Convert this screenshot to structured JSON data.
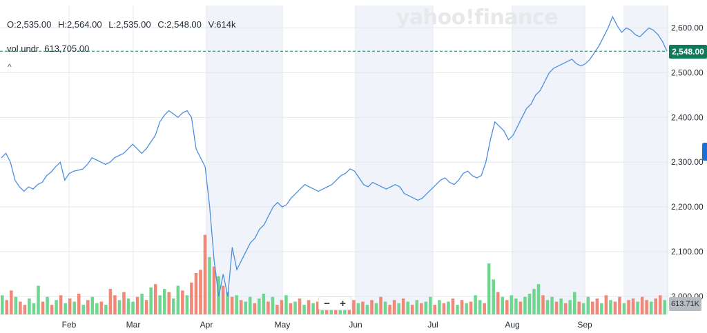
{
  "header": {
    "open": "O:2,535.00",
    "high": "H:2,564.00",
    "low": "L:2,535.00",
    "close": "C:2,548.00",
    "volume": "V:614k",
    "vol_under_label": "vol undr",
    "vol_under_value": "613,705.00",
    "collapse_glyph": "^"
  },
  "watermark": "yahoo!finance",
  "price_badge": "2,548.00",
  "volume_badge": "613.71K",
  "zoom": {
    "minus": "−",
    "plus": "+"
  },
  "colors": {
    "line": "#4a8fe0",
    "up": "#6fd68f",
    "down": "#f08878",
    "badge": "#0f7a5a",
    "shade": "#f0f3f9"
  },
  "chart_data": {
    "type": "line",
    "ylim": [
      1960,
      2650
    ],
    "yticks": [
      {
        "v": 2000,
        "label": "2,000.00"
      },
      {
        "v": 2100,
        "label": "2,100.00"
      },
      {
        "v": 2200,
        "label": "2,200.00"
      },
      {
        "v": 2300,
        "label": "2,300.00"
      },
      {
        "v": 2400,
        "label": "2,400.00"
      },
      {
        "v": 2500,
        "label": "2,500.00"
      },
      {
        "v": 2600,
        "label": "2,600.00"
      }
    ],
    "months": [
      "Feb",
      "Mar",
      "Apr",
      "May",
      "Jun",
      "Jul",
      "Aug",
      "Sep"
    ],
    "last_price": 2548,
    "price": [
      2310,
      2320,
      2300,
      2260,
      2245,
      2235,
      2245,
      2240,
      2250,
      2255,
      2270,
      2278,
      2290,
      2300,
      2260,
      2275,
      2280,
      2282,
      2285,
      2295,
      2310,
      2305,
      2300,
      2295,
      2300,
      2310,
      2315,
      2320,
      2330,
      2340,
      2330,
      2320,
      2330,
      2345,
      2360,
      2390,
      2405,
      2415,
      2408,
      2400,
      2410,
      2415,
      2400,
      2330,
      2310,
      2290,
      2200,
      2080,
      2000,
      2050,
      2000,
      2110,
      2060,
      2080,
      2100,
      2120,
      2130,
      2150,
      2160,
      2180,
      2200,
      2210,
      2200,
      2205,
      2220,
      2230,
      2240,
      2250,
      2245,
      2240,
      2235,
      2240,
      2245,
      2250,
      2260,
      2270,
      2275,
      2285,
      2280,
      2265,
      2250,
      2245,
      2255,
      2250,
      2245,
      2240,
      2245,
      2250,
      2245,
      2230,
      2225,
      2220,
      2215,
      2220,
      2230,
      2240,
      2250,
      2260,
      2265,
      2255,
      2250,
      2260,
      2275,
      2280,
      2270,
      2265,
      2270,
      2300,
      2350,
      2390,
      2380,
      2370,
      2350,
      2360,
      2380,
      2400,
      2420,
      2430,
      2450,
      2460,
      2480,
      2500,
      2510,
      2515,
      2520,
      2525,
      2530,
      2520,
      2515,
      2520,
      2530,
      2545,
      2560,
      2580,
      2600,
      2625,
      2605,
      2590,
      2600,
      2595,
      2585,
      2580,
      2590,
      2600,
      2595,
      2585,
      2570,
      2548
    ],
    "volume": [
      {
        "v": 60,
        "d": "up"
      },
      {
        "v": 45,
        "d": "down"
      },
      {
        "v": 75,
        "d": "down"
      },
      {
        "v": 55,
        "d": "up"
      },
      {
        "v": 40,
        "d": "down"
      },
      {
        "v": 30,
        "d": "down"
      },
      {
        "v": 50,
        "d": "up"
      },
      {
        "v": 35,
        "d": "up"
      },
      {
        "v": 90,
        "d": "up"
      },
      {
        "v": 40,
        "d": "down"
      },
      {
        "v": 55,
        "d": "up"
      },
      {
        "v": 30,
        "d": "down"
      },
      {
        "v": 45,
        "d": "up"
      },
      {
        "v": 60,
        "d": "down"
      },
      {
        "v": 35,
        "d": "up"
      },
      {
        "v": 50,
        "d": "down"
      },
      {
        "v": 40,
        "d": "up"
      },
      {
        "v": 65,
        "d": "down"
      },
      {
        "v": 30,
        "d": "up"
      },
      {
        "v": 45,
        "d": "down"
      },
      {
        "v": 55,
        "d": "up"
      },
      {
        "v": 35,
        "d": "up"
      },
      {
        "v": 40,
        "d": "down"
      },
      {
        "v": 30,
        "d": "up"
      },
      {
        "v": 80,
        "d": "down"
      },
      {
        "v": 60,
        "d": "down"
      },
      {
        "v": 45,
        "d": "up"
      },
      {
        "v": 70,
        "d": "down"
      },
      {
        "v": 50,
        "d": "up"
      },
      {
        "v": 40,
        "d": "up"
      },
      {
        "v": 55,
        "d": "down"
      },
      {
        "v": 65,
        "d": "up"
      },
      {
        "v": 45,
        "d": "down"
      },
      {
        "v": 85,
        "d": "up"
      },
      {
        "v": 95,
        "d": "down"
      },
      {
        "v": 60,
        "d": "up"
      },
      {
        "v": 80,
        "d": "up"
      },
      {
        "v": 70,
        "d": "down"
      },
      {
        "v": 50,
        "d": "up"
      },
      {
        "v": 90,
        "d": "up"
      },
      {
        "v": 75,
        "d": "down"
      },
      {
        "v": 60,
        "d": "up"
      },
      {
        "v": 100,
        "d": "down"
      },
      {
        "v": 130,
        "d": "down"
      },
      {
        "v": 140,
        "d": "down"
      },
      {
        "v": 250,
        "d": "down"
      },
      {
        "v": 180,
        "d": "up"
      },
      {
        "v": 150,
        "d": "down"
      },
      {
        "v": 120,
        "d": "up"
      },
      {
        "v": 90,
        "d": "down"
      },
      {
        "v": 70,
        "d": "up"
      },
      {
        "v": 55,
        "d": "down"
      },
      {
        "v": 60,
        "d": "up"
      },
      {
        "v": 45,
        "d": "down"
      },
      {
        "v": 40,
        "d": "up"
      },
      {
        "v": 55,
        "d": "up"
      },
      {
        "v": 35,
        "d": "down"
      },
      {
        "v": 50,
        "d": "up"
      },
      {
        "v": 65,
        "d": "up"
      },
      {
        "v": 40,
        "d": "down"
      },
      {
        "v": 55,
        "d": "up"
      },
      {
        "v": 30,
        "d": "down"
      },
      {
        "v": 45,
        "d": "down"
      },
      {
        "v": 60,
        "d": "up"
      },
      {
        "v": 35,
        "d": "down"
      },
      {
        "v": 40,
        "d": "up"
      },
      {
        "v": 50,
        "d": "down"
      },
      {
        "v": 30,
        "d": "up"
      },
      {
        "v": 45,
        "d": "down"
      },
      {
        "v": 35,
        "d": "up"
      },
      {
        "v": 40,
        "d": "down"
      },
      {
        "v": 55,
        "d": "up"
      },
      {
        "v": 30,
        "d": "down"
      },
      {
        "v": 45,
        "d": "up"
      },
      {
        "v": 35,
        "d": "down"
      },
      {
        "v": 50,
        "d": "up"
      },
      {
        "v": 40,
        "d": "up"
      },
      {
        "v": 30,
        "d": "down"
      },
      {
        "v": 45,
        "d": "down"
      },
      {
        "v": 35,
        "d": "up"
      },
      {
        "v": 40,
        "d": "down"
      },
      {
        "v": 30,
        "d": "up"
      },
      {
        "v": 45,
        "d": "down"
      },
      {
        "v": 35,
        "d": "up"
      },
      {
        "v": 55,
        "d": "down"
      },
      {
        "v": 40,
        "d": "up"
      },
      {
        "v": 30,
        "d": "down"
      },
      {
        "v": 45,
        "d": "down"
      },
      {
        "v": 35,
        "d": "up"
      },
      {
        "v": 50,
        "d": "down"
      },
      {
        "v": 40,
        "d": "up"
      },
      {
        "v": 30,
        "d": "down"
      },
      {
        "v": 45,
        "d": "up"
      },
      {
        "v": 35,
        "d": "down"
      },
      {
        "v": 40,
        "d": "up"
      },
      {
        "v": 55,
        "d": "up"
      },
      {
        "v": 30,
        "d": "down"
      },
      {
        "v": 45,
        "d": "up"
      },
      {
        "v": 35,
        "d": "down"
      },
      {
        "v": 40,
        "d": "up"
      },
      {
        "v": 50,
        "d": "down"
      },
      {
        "v": 30,
        "d": "up"
      },
      {
        "v": 45,
        "d": "down"
      },
      {
        "v": 35,
        "d": "up"
      },
      {
        "v": 40,
        "d": "down"
      },
      {
        "v": 60,
        "d": "up"
      },
      {
        "v": 45,
        "d": "up"
      },
      {
        "v": 35,
        "d": "down"
      },
      {
        "v": 160,
        "d": "up"
      },
      {
        "v": 110,
        "d": "up"
      },
      {
        "v": 70,
        "d": "down"
      },
      {
        "v": 55,
        "d": "up"
      },
      {
        "v": 45,
        "d": "down"
      },
      {
        "v": 60,
        "d": "up"
      },
      {
        "v": 50,
        "d": "up"
      },
      {
        "v": 40,
        "d": "down"
      },
      {
        "v": 55,
        "d": "up"
      },
      {
        "v": 65,
        "d": "up"
      },
      {
        "v": 80,
        "d": "up"
      },
      {
        "v": 95,
        "d": "up"
      },
      {
        "v": 60,
        "d": "down"
      },
      {
        "v": 45,
        "d": "up"
      },
      {
        "v": 55,
        "d": "up"
      },
      {
        "v": 40,
        "d": "down"
      },
      {
        "v": 50,
        "d": "up"
      },
      {
        "v": 35,
        "d": "down"
      },
      {
        "v": 45,
        "d": "up"
      },
      {
        "v": 70,
        "d": "up"
      },
      {
        "v": 40,
        "d": "down"
      },
      {
        "v": 35,
        "d": "up"
      },
      {
        "v": 55,
        "d": "up"
      },
      {
        "v": 40,
        "d": "down"
      },
      {
        "v": 50,
        "d": "down"
      },
      {
        "v": 35,
        "d": "up"
      },
      {
        "v": 60,
        "d": "down"
      },
      {
        "v": 45,
        "d": "up"
      },
      {
        "v": 40,
        "d": "down"
      },
      {
        "v": 55,
        "d": "down"
      },
      {
        "v": 35,
        "d": "up"
      },
      {
        "v": 45,
        "d": "down"
      },
      {
        "v": 50,
        "d": "down"
      },
      {
        "v": 40,
        "d": "up"
      },
      {
        "v": 55,
        "d": "down"
      },
      {
        "v": 45,
        "d": "down"
      },
      {
        "v": 40,
        "d": "up"
      },
      {
        "v": 50,
        "d": "down"
      },
      {
        "v": 60,
        "d": "down"
      },
      {
        "v": 45,
        "d": "up"
      }
    ]
  }
}
